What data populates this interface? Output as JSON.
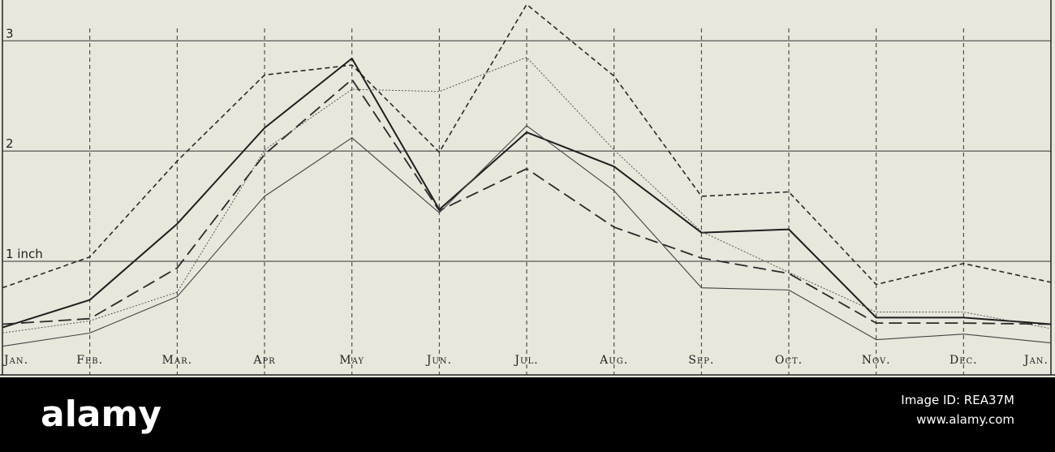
{
  "chart_data": {
    "type": "line",
    "categories": [
      "Jan.",
      "Feb.",
      "Mar.",
      "Apr",
      "May",
      "Jun.",
      "Jul.",
      "Aug.",
      "Sep.",
      "Oct.",
      "Nov.",
      "Dec.",
      "Jan."
    ],
    "series": [
      {
        "color": "#2a2a2a",
        "dash": "6,4",
        "width": 1.6,
        "values": [
          0.76,
          1.04,
          1.91,
          2.69,
          2.78,
          1.99,
          3.33,
          2.68,
          1.59,
          1.63,
          0.79,
          0.98,
          0.81
        ]
      },
      {
        "color": "#1e1e1e",
        "dash": "none",
        "width": 2,
        "values": [
          0.4,
          0.65,
          1.34,
          2.21,
          2.84,
          1.47,
          2.17,
          1.86,
          1.26,
          1.29,
          0.49,
          0.49,
          0.43
        ]
      },
      {
        "color": "#2a2a2a",
        "dash": "16,7",
        "width": 1.8,
        "values": [
          0.43,
          0.48,
          0.94,
          1.97,
          2.65,
          1.46,
          1.84,
          1.31,
          1.03,
          0.89,
          0.44,
          0.44,
          0.43
        ]
      },
      {
        "color": "#555555",
        "dash": "2,2",
        "width": 1,
        "values": [
          0.35,
          0.46,
          0.72,
          2.01,
          2.56,
          2.54,
          2.85,
          2.01,
          1.27,
          0.9,
          0.54,
          0.54,
          0.39
        ]
      },
      {
        "color": "#444444",
        "dash": "none",
        "width": 1.1,
        "values": [
          0.23,
          0.35,
          0.68,
          1.59,
          2.12,
          1.44,
          2.23,
          1.64,
          0.76,
          0.74,
          0.29,
          0.34,
          0.26
        ]
      }
    ],
    "ylim": [
      -0.03,
      3.37
    ],
    "yticks": [
      {
        "value": 1,
        "label": "1 inch"
      },
      2,
      3
    ],
    "grid": true
  },
  "footer": {
    "brand": "alamy",
    "image_id": "Image ID: REA37M",
    "site": "www.alamy.com"
  }
}
